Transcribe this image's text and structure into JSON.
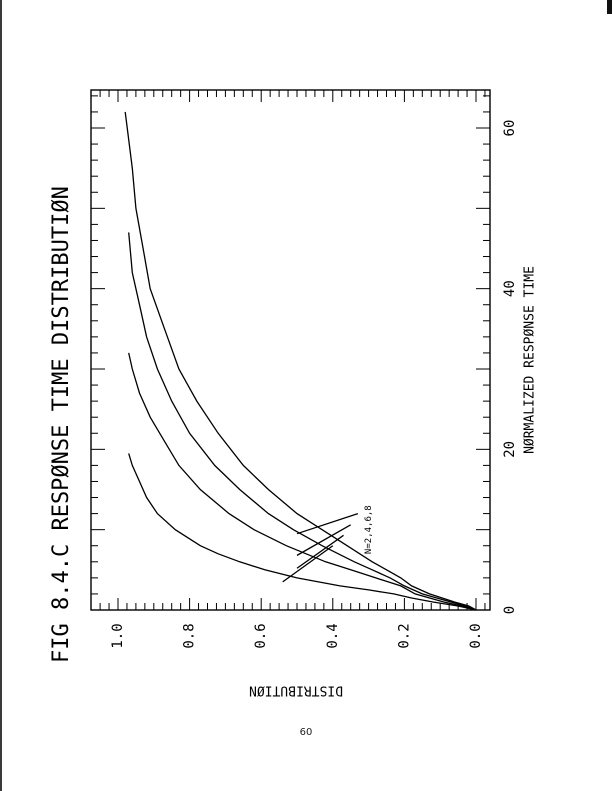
{
  "page": {
    "number": "60"
  },
  "chart_data": {
    "type": "line",
    "title": "FIG 8.4.C RESPØNSE TIME DISTRIBUTIØN",
    "xlabel": "NØRMALIZED RESPØNSE TIME",
    "ylabel": "DISTRIBUTIØN",
    "xlim": [
      0,
      66
    ],
    "ylim": [
      0,
      1.05
    ],
    "x_ticks": [
      0,
      20,
      40,
      60
    ],
    "y_ticks": [
      0.0,
      0.2,
      0.4,
      0.6,
      0.8,
      1.0
    ],
    "x_tick_labels": [
      "0",
      "20",
      "40",
      "60"
    ],
    "y_tick_labels": [
      "0.0",
      "0.2",
      "0.4",
      "0.6",
      "0.8",
      "1.0"
    ],
    "annotation": "N=2,4,6,8",
    "grid": false,
    "series": [
      {
        "x": [
          0,
          0.5,
          1,
          1.5,
          2,
          2.5,
          3,
          4,
          5,
          6,
          7,
          8,
          10,
          12,
          14,
          16,
          18,
          19.5
        ],
        "y": [
          0.0,
          0.05,
          0.12,
          0.18,
          0.23,
          0.3,
          0.38,
          0.5,
          0.59,
          0.66,
          0.72,
          0.77,
          0.84,
          0.89,
          0.92,
          0.94,
          0.96,
          0.97
        ]
      },
      {
        "x": [
          0,
          0.5,
          1,
          2,
          3,
          4,
          5,
          6,
          8,
          10,
          12,
          15,
          18,
          21,
          24,
          27,
          30,
          32
        ],
        "y": [
          0.0,
          0.04,
          0.09,
          0.17,
          0.21,
          0.28,
          0.35,
          0.42,
          0.53,
          0.62,
          0.69,
          0.77,
          0.83,
          0.87,
          0.91,
          0.94,
          0.96,
          0.97
        ]
      },
      {
        "x": [
          0,
          0.5,
          1,
          2,
          3,
          4,
          5,
          6,
          8,
          10,
          12,
          15,
          18,
          22,
          26,
          30,
          34,
          38,
          42,
          47
        ],
        "y": [
          0.0,
          0.03,
          0.07,
          0.15,
          0.2,
          0.24,
          0.29,
          0.34,
          0.43,
          0.51,
          0.58,
          0.66,
          0.73,
          0.8,
          0.85,
          0.89,
          0.92,
          0.94,
          0.96,
          0.97
        ]
      },
      {
        "x": [
          0,
          0.5,
          1,
          2,
          3,
          4,
          5,
          6,
          8,
          10,
          12,
          15,
          18,
          22,
          26,
          30,
          35,
          40,
          45,
          50,
          55,
          62
        ],
        "y": [
          0.0,
          0.02,
          0.06,
          0.13,
          0.18,
          0.21,
          0.25,
          0.29,
          0.36,
          0.43,
          0.5,
          0.58,
          0.65,
          0.72,
          0.78,
          0.83,
          0.87,
          0.91,
          0.93,
          0.95,
          0.96,
          0.98
        ]
      }
    ]
  }
}
